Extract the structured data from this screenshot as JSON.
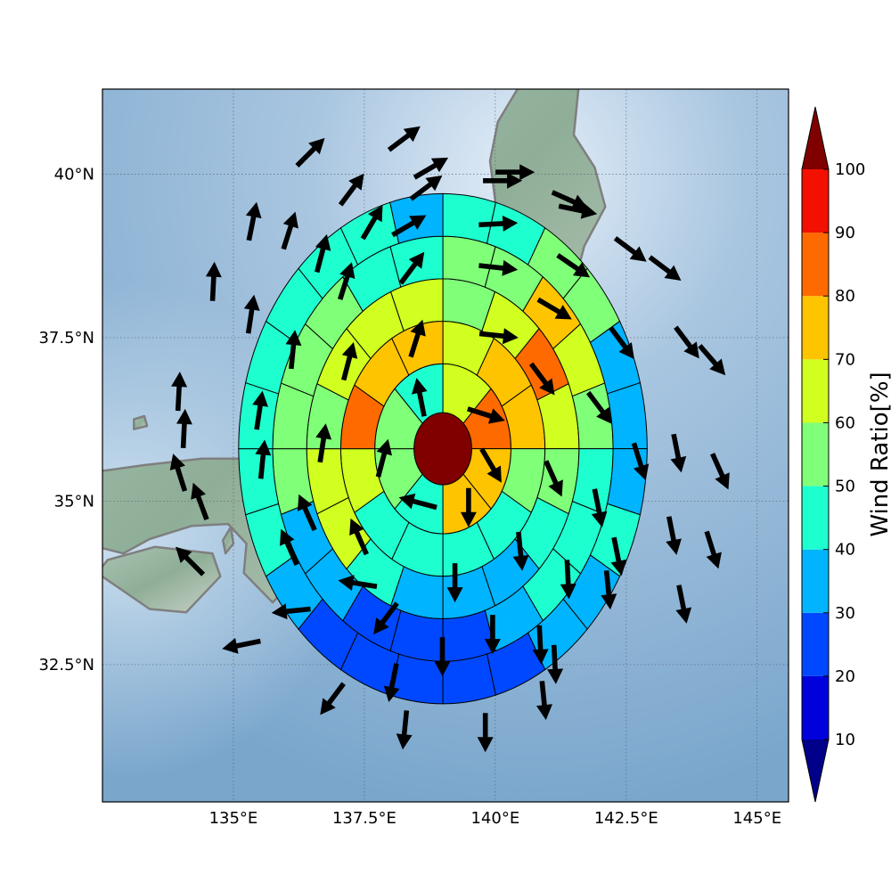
{
  "chart_data": {
    "type": "heatmap",
    "subtype": "polar-sector-map-with-wind-vectors",
    "map": {
      "lon_range": [
        132.5,
        145.6
      ],
      "lat_range": [
        30.4,
        41.3
      ],
      "x_ticks": [
        135,
        137.5,
        140,
        142.5,
        145
      ],
      "x_tick_labels": [
        "135°E",
        "137.5°E",
        "140°E",
        "142.5°E",
        "145°E"
      ],
      "y_ticks": [
        32.5,
        35,
        37.5,
        40
      ],
      "y_tick_labels": [
        "32.5°N",
        "35°N",
        "37.5°N",
        "40°N"
      ],
      "grid": true,
      "background": "shaded relief (land / sea)",
      "coastline_color": "#808080"
    },
    "center": [
      139.0,
      35.8
    ],
    "center_value": 100,
    "ring_radii_deg": [
      0.55,
      1.3,
      1.95,
      2.6,
      3.25,
      3.9
    ],
    "sectors_per_ring": [
      8,
      12,
      16,
      20,
      24
    ],
    "ring_values": [
      [
        65,
        80,
        70,
        70,
        45,
        55,
        50,
        45
      ],
      [
        60,
        70,
        70,
        55,
        45,
        45,
        40,
        40,
        60,
        80,
        70,
        70
      ],
      [
        55,
        65,
        80,
        65,
        55,
        45,
        35,
        30,
        35,
        40,
        60,
        60,
        55,
        60,
        60,
        60
      ],
      [
        50,
        55,
        75,
        60,
        55,
        45,
        45,
        40,
        30,
        25,
        25,
        25,
        35,
        35,
        50,
        50,
        55,
        55,
        45,
        45
      ],
      [
        45,
        45,
        50,
        50,
        35,
        35,
        35,
        40,
        30,
        30,
        20,
        20,
        20,
        20,
        20,
        35,
        45,
        45,
        45,
        45,
        40,
        40,
        40,
        35
      ]
    ],
    "wind_vectors": [
      {
        "lon": 138.57,
        "lat": 36.59,
        "u": -0.2,
        "v": 1.0
      },
      {
        "lon": 139.83,
        "lat": 36.32,
        "u": 0.95,
        "v": -0.3
      },
      {
        "lon": 139.93,
        "lat": 35.54,
        "u": 0.5,
        "v": -0.85
      },
      {
        "lon": 139.49,
        "lat": 34.9,
        "u": 0.0,
        "v": -1.0
      },
      {
        "lon": 138.52,
        "lat": 34.98,
        "u": -0.95,
        "v": 0.25
      },
      {
        "lon": 137.86,
        "lat": 35.66,
        "u": 0.25,
        "v": 0.95
      },
      {
        "lon": 138.5,
        "lat": 37.49,
        "u": 0.3,
        "v": 0.95
      },
      {
        "lon": 140.07,
        "lat": 37.53,
        "u": 0.95,
        "v": -0.1
      },
      {
        "lon": 140.91,
        "lat": 36.86,
        "u": 0.6,
        "v": -0.8
      },
      {
        "lon": 141.12,
        "lat": 35.34,
        "u": 0.4,
        "v": -0.9
      },
      {
        "lon": 140.48,
        "lat": 34.23,
        "u": 0.1,
        "v": -1.0
      },
      {
        "lon": 139.23,
        "lat": 33.75,
        "u": 0.0,
        "v": -1.0
      },
      {
        "lon": 137.39,
        "lat": 34.46,
        "u": -0.4,
        "v": 0.9
      },
      {
        "lon": 136.71,
        "lat": 35.89,
        "u": 0.15,
        "v": 1.0
      },
      {
        "lon": 137.2,
        "lat": 37.14,
        "u": 0.25,
        "v": 0.95
      },
      {
        "lon": 138.42,
        "lat": 38.57,
        "u": 0.6,
        "v": 0.8
      },
      {
        "lon": 140.06,
        "lat": 38.57,
        "u": 0.95,
        "v": -0.1
      },
      {
        "lon": 141.14,
        "lat": 37.93,
        "u": 0.85,
        "v": -0.5
      },
      {
        "lon": 142.0,
        "lat": 36.42,
        "u": 0.6,
        "v": -0.8
      },
      {
        "lon": 141.97,
        "lat": 34.89,
        "u": 0.2,
        "v": -1.0
      },
      {
        "lon": 141.39,
        "lat": 33.8,
        "u": 0.05,
        "v": -1.0
      },
      {
        "lon": 139.95,
        "lat": 32.96,
        "u": 0.0,
        "v": -1.0
      },
      {
        "lon": 137.9,
        "lat": 33.2,
        "u": -0.6,
        "v": -0.8
      },
      {
        "lon": 136.4,
        "lat": 34.83,
        "u": -0.4,
        "v": 0.9
      },
      {
        "lon": 135.56,
        "lat": 35.64,
        "u": 0.1,
        "v": 1.0
      },
      {
        "lon": 136.14,
        "lat": 37.32,
        "u": 0.1,
        "v": 1.0
      },
      {
        "lon": 137.15,
        "lat": 38.37,
        "u": 0.3,
        "v": 0.95
      },
      {
        "lon": 138.36,
        "lat": 39.22,
        "u": 0.85,
        "v": 0.5
      },
      {
        "lon": 140.06,
        "lat": 39.24,
        "u": 1.0,
        "v": 0.05
      },
      {
        "lon": 141.5,
        "lat": 38.59,
        "u": 0.8,
        "v": -0.55
      },
      {
        "lon": 142.43,
        "lat": 37.41,
        "u": 0.6,
        "v": -0.8
      },
      {
        "lon": 142.76,
        "lat": 35.6,
        "u": 0.3,
        "v": -0.95
      },
      {
        "lon": 142.34,
        "lat": 34.15,
        "u": 0.2,
        "v": -1.0
      },
      {
        "lon": 140.86,
        "lat": 32.8,
        "u": 0.05,
        "v": -1.0
      },
      {
        "lon": 138.99,
        "lat": 32.62,
        "u": 0.0,
        "v": -1.0
      },
      {
        "lon": 137.37,
        "lat": 33.74,
        "u": -0.95,
        "v": 0.15
      },
      {
        "lon": 136.06,
        "lat": 34.3,
        "u": -0.4,
        "v": 0.9
      },
      {
        "lon": 135.5,
        "lat": 36.39,
        "u": 0.15,
        "v": 1.0
      },
      {
        "lon": 136.69,
        "lat": 38.79,
        "u": 0.25,
        "v": 0.95
      },
      {
        "lon": 137.66,
        "lat": 39.27,
        "u": 0.5,
        "v": 0.85
      },
      {
        "lon": 138.69,
        "lat": 39.8,
        "u": 0.8,
        "v": 0.6
      },
      {
        "lon": 140.14,
        "lat": 39.9,
        "u": 1.0,
        "v": 0.0
      },
      {
        "lon": 141.43,
        "lat": 39.6,
        "u": 0.9,
        "v": -0.4
      },
      {
        "lon": 142.59,
        "lat": 38.84,
        "u": 0.8,
        "v": -0.6
      },
      {
        "lon": 143.67,
        "lat": 37.42,
        "u": 0.6,
        "v": -0.8
      },
      {
        "lon": 143.48,
        "lat": 35.73,
        "u": 0.2,
        "v": -1.0
      },
      {
        "lon": 143.39,
        "lat": 34.47,
        "u": 0.2,
        "v": -1.0
      },
      {
        "lon": 142.16,
        "lat": 33.64,
        "u": 0.1,
        "v": -1.0
      },
      {
        "lon": 141.14,
        "lat": 32.5,
        "u": 0.05,
        "v": -1.0
      },
      {
        "lon": 138.04,
        "lat": 32.22,
        "u": -0.2,
        "v": -1.0
      },
      {
        "lon": 136.1,
        "lat": 33.32,
        "u": -1.0,
        "v": -0.1
      },
      {
        "lon": 134.36,
        "lat": 35.0,
        "u": -0.35,
        "v": 0.95
      },
      {
        "lon": 134.06,
        "lat": 36.11,
        "u": 0.05,
        "v": 1.0
      },
      {
        "lon": 135.34,
        "lat": 37.86,
        "u": 0.15,
        "v": 1.0
      },
      {
        "lon": 136.07,
        "lat": 39.14,
        "u": 0.3,
        "v": 0.95
      },
      {
        "lon": 137.27,
        "lat": 39.77,
        "u": 0.6,
        "v": 0.8
      },
      {
        "lon": 138.78,
        "lat": 40.1,
        "u": 0.85,
        "v": 0.5
      },
      {
        "lon": 140.38,
        "lat": 40.03,
        "u": 1.0,
        "v": 0.0
      },
      {
        "lon": 141.58,
        "lat": 39.45,
        "u": 0.95,
        "v": -0.2
      },
      {
        "lon": 143.25,
        "lat": 38.55,
        "u": 0.8,
        "v": -0.6
      },
      {
        "lon": 144.15,
        "lat": 37.15,
        "u": 0.65,
        "v": -0.75
      },
      {
        "lon": 144.3,
        "lat": 35.45,
        "u": 0.4,
        "v": -0.9
      },
      {
        "lon": 144.15,
        "lat": 34.25,
        "u": 0.3,
        "v": -0.95
      },
      {
        "lon": 143.58,
        "lat": 33.42,
        "u": 0.2,
        "v": -1.0
      },
      {
        "lon": 140.93,
        "lat": 31.95,
        "u": 0.1,
        "v": -1.0
      },
      {
        "lon": 139.81,
        "lat": 31.46,
        "u": 0.0,
        "v": -1.0
      },
      {
        "lon": 138.27,
        "lat": 31.5,
        "u": -0.1,
        "v": -1.0
      },
      {
        "lon": 136.88,
        "lat": 31.97,
        "u": -0.6,
        "v": -0.8
      },
      {
        "lon": 135.15,
        "lat": 32.8,
        "u": -1.0,
        "v": -0.2
      },
      {
        "lon": 134.16,
        "lat": 34.09,
        "u": -0.7,
        "v": 0.7
      },
      {
        "lon": 133.96,
        "lat": 35.44,
        "u": -0.3,
        "v": 0.95
      },
      {
        "lon": 133.96,
        "lat": 36.68,
        "u": 0.05,
        "v": 1.0
      },
      {
        "lon": 134.62,
        "lat": 38.36,
        "u": 0.05,
        "v": 1.0
      },
      {
        "lon": 135.37,
        "lat": 39.28,
        "u": 0.2,
        "v": 1.0
      },
      {
        "lon": 136.48,
        "lat": 40.34,
        "u": 0.7,
        "v": 0.7
      },
      {
        "lon": 138.27,
        "lat": 40.55,
        "u": 0.8,
        "v": 0.6
      }
    ],
    "colorbar": {
      "label": "Wind Ratio[%]",
      "ticks": [
        10,
        20,
        30,
        40,
        50,
        60,
        70,
        80,
        90,
        100
      ],
      "bounds": [
        0,
        10,
        20,
        30,
        40,
        50,
        60,
        70,
        80,
        90,
        100,
        110
      ],
      "colors": [
        "#00008b",
        "#0000dc",
        "#0048ff",
        "#00b4ff",
        "#1effd0",
        "#80ff78",
        "#d0ff20",
        "#ffc400",
        "#ff6a00",
        "#f41000",
        "#800000"
      ],
      "extend": "both"
    }
  }
}
